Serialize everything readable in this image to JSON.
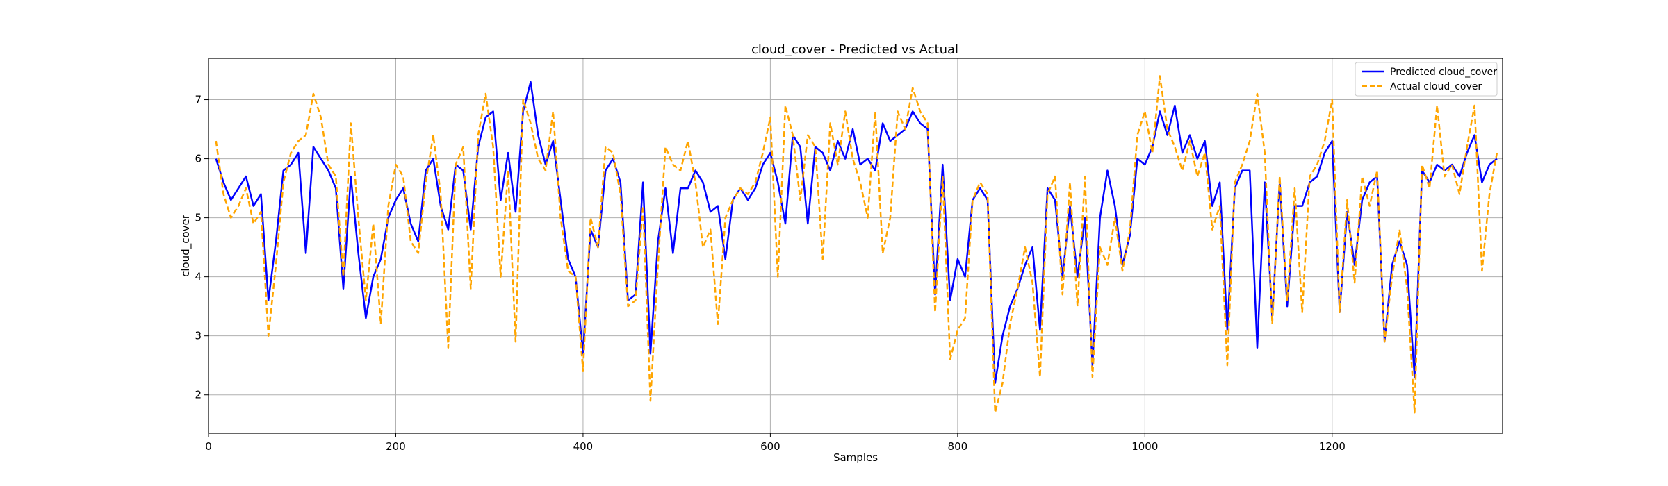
{
  "chart_data": {
    "type": "line",
    "title": "cloud_cover - Predicted vs Actual",
    "xlabel": "Samples",
    "ylabel": "cloud_cover",
    "xlim": [
      0,
      1382
    ],
    "ylim": [
      1.35,
      7.7
    ],
    "xticks": [
      0,
      200,
      400,
      600,
      800,
      1000,
      1200
    ],
    "yticks": [
      2,
      3,
      4,
      5,
      6,
      7
    ],
    "grid": true,
    "legend_position": "top-right",
    "x_start": 8,
    "x_step": 8,
    "series": [
      {
        "name": "Predicted cloud_cover",
        "color": "#0000ff",
        "style": "solid",
        "values": [
          6.0,
          5.6,
          5.3,
          5.5,
          5.7,
          5.2,
          5.4,
          3.6,
          4.6,
          5.8,
          5.9,
          6.1,
          4.4,
          6.2,
          6.0,
          5.8,
          5.5,
          3.8,
          5.7,
          4.4,
          3.3,
          4.0,
          4.3,
          5.0,
          5.3,
          5.5,
          4.9,
          4.6,
          5.8,
          6.0,
          5.2,
          4.8,
          5.9,
          5.8,
          4.8,
          6.2,
          6.7,
          6.8,
          5.3,
          6.1,
          5.1,
          6.8,
          7.3,
          6.4,
          5.9,
          6.3,
          5.3,
          4.3,
          4.0,
          2.7,
          4.8,
          4.5,
          5.8,
          6.0,
          5.6,
          3.6,
          3.7,
          5.6,
          2.7,
          4.6,
          5.5,
          4.4,
          5.5,
          5.5,
          5.8,
          5.6,
          5.1,
          5.2,
          4.3,
          5.3,
          5.5,
          5.3,
          5.5,
          5.9,
          6.1,
          5.6,
          4.9,
          6.4,
          6.2,
          4.9,
          6.2,
          6.1,
          5.8,
          6.3,
          6.0,
          6.5,
          5.9,
          6.0,
          5.8,
          6.6,
          6.3,
          6.4,
          6.5,
          6.8,
          6.6,
          6.5,
          3.7,
          5.9,
          3.6,
          4.3,
          4.0,
          5.3,
          5.5,
          5.3,
          2.2,
          3.0,
          3.5,
          3.8,
          4.2,
          4.5,
          3.1,
          5.5,
          5.3,
          4.0,
          5.2,
          4.0,
          5.0,
          2.5,
          5.0,
          5.8,
          5.2,
          4.2,
          4.7,
          6.0,
          5.9,
          6.2,
          6.8,
          6.4,
          6.9,
          6.1,
          6.4,
          6.0,
          6.3,
          5.2,
          5.6,
          3.1,
          5.5,
          5.8,
          5.8,
          2.8,
          5.6,
          3.3,
          5.6,
          3.5,
          5.2,
          5.2,
          5.6,
          5.7,
          6.1,
          6.3,
          3.4,
          5.1,
          4.2,
          5.3,
          5.6,
          5.7,
          2.9,
          4.2,
          4.6,
          4.2,
          2.3,
          5.8,
          5.6,
          5.9,
          5.8,
          5.9,
          5.7,
          6.1,
          6.4,
          5.6,
          5.9,
          6.0
        ]
      },
      {
        "name": "Actual cloud_cover",
        "color": "#ffa500",
        "style": "dashed",
        "values": [
          6.3,
          5.4,
          5.0,
          5.2,
          5.5,
          4.9,
          5.1,
          3.0,
          4.2,
          5.6,
          6.1,
          6.3,
          6.4,
          7.1,
          6.7,
          5.9,
          5.7,
          4.0,
          6.6,
          5.0,
          3.6,
          4.9,
          3.2,
          5.2,
          5.9,
          5.7,
          4.6,
          4.4,
          5.6,
          6.4,
          5.4,
          2.8,
          5.9,
          6.2,
          3.8,
          6.4,
          7.1,
          6.2,
          4.0,
          5.8,
          2.9,
          7.0,
          6.6,
          6.0,
          5.8,
          6.8,
          5.0,
          4.1,
          4.0,
          2.4,
          5.0,
          4.5,
          6.2,
          6.1,
          5.4,
          3.5,
          3.6,
          5.2,
          1.9,
          4.2,
          6.2,
          5.9,
          5.8,
          6.3,
          5.6,
          4.5,
          4.8,
          3.2,
          5.0,
          5.3,
          5.5,
          5.4,
          5.6,
          6.1,
          6.7,
          4.0,
          6.9,
          6.4,
          5.3,
          6.4,
          6.2,
          4.3,
          6.6,
          5.9,
          6.8,
          6.0,
          5.6,
          5.0,
          6.8,
          4.4,
          5.0,
          6.8,
          6.5,
          7.2,
          6.8,
          6.6,
          3.4,
          5.7,
          2.6,
          3.1,
          3.3,
          5.3,
          5.6,
          5.4,
          1.7,
          2.2,
          3.2,
          3.8,
          4.5,
          3.9,
          2.3,
          5.4,
          5.7,
          3.7,
          5.6,
          3.5,
          5.7,
          2.3,
          4.5,
          4.2,
          5.0,
          4.1,
          4.8,
          6.4,
          6.8,
          6.1,
          7.4,
          6.5,
          6.2,
          5.8,
          6.3,
          5.7,
          6.1,
          4.8,
          5.2,
          2.5,
          5.6,
          5.9,
          6.3,
          7.1,
          6.1,
          3.2,
          5.7,
          3.6,
          5.5,
          3.4,
          5.7,
          5.9,
          6.3,
          7.0,
          3.4,
          5.3,
          3.9,
          5.7,
          5.2,
          5.8,
          2.9,
          4.0,
          4.8,
          3.8,
          1.7,
          5.9,
          5.5,
          6.9,
          5.7,
          5.9,
          5.4,
          6.2,
          6.9,
          4.1,
          5.4,
          6.1
        ]
      }
    ]
  }
}
